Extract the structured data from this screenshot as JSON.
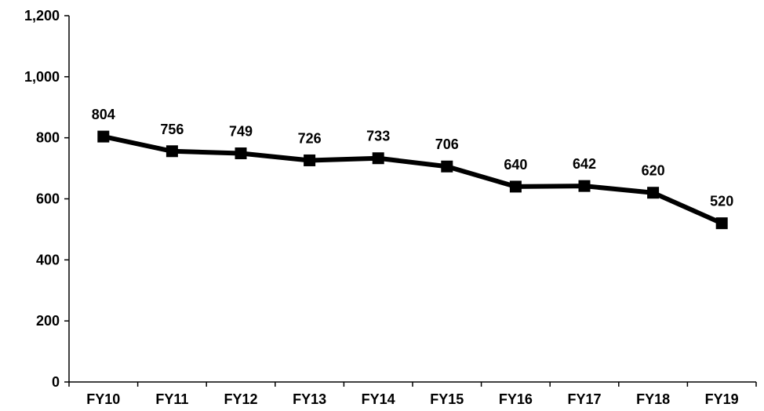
{
  "chart_data": {
    "type": "line",
    "categories": [
      "FY10",
      "FY11",
      "FY12",
      "FY13",
      "FY14",
      "FY15",
      "FY16",
      "FY17",
      "FY18",
      "FY19"
    ],
    "series": [
      {
        "values": [
          804,
          756,
          749,
          726,
          733,
          706,
          640,
          642,
          620,
          520
        ]
      }
    ],
    "data_labels": [
      "804",
      "756",
      "749",
      "726",
      "733",
      "706",
      "640",
      "642",
      "620",
      "520"
    ],
    "y_ticks": [
      0,
      200,
      400,
      600,
      800,
      1000,
      1200
    ],
    "y_tick_labels": [
      "0",
      "200",
      "400",
      "600",
      "800",
      "1,000",
      "1,200"
    ],
    "ylim": [
      0,
      1200
    ],
    "grid": false,
    "legend": "none",
    "line_color": "#000000",
    "marker": "square"
  }
}
